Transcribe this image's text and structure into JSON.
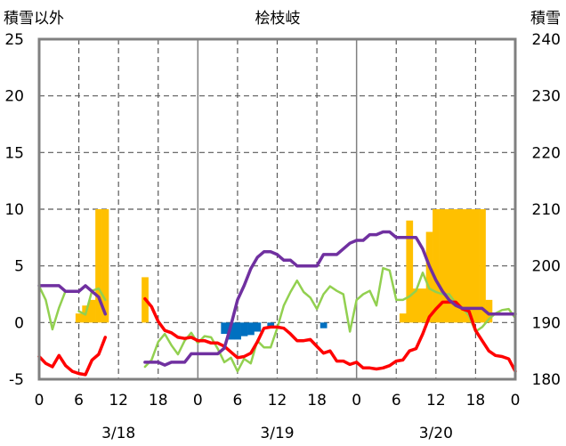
{
  "chart_data": {
    "type": "line",
    "title": "桧枝岐",
    "left_axis_label": "積雪以外",
    "right_axis_label": "積雪",
    "left_ylim": [
      -5,
      25
    ],
    "right_ylim": [
      180,
      240
    ],
    "left_ticks": [
      "25",
      "20",
      "15",
      "10",
      "5",
      "0",
      "-5"
    ],
    "right_ticks": [
      "240",
      "230",
      "220",
      "210",
      "200",
      "190",
      "180"
    ],
    "x_ticks": [
      "0",
      "6",
      "12",
      "18",
      "0",
      "6",
      "12",
      "18",
      "0",
      "6",
      "12",
      "18",
      "0"
    ],
    "x_tick_hours": [
      0,
      6,
      12,
      18,
      24,
      30,
      36,
      42,
      48,
      54,
      60,
      66,
      72
    ],
    "date_labels": [
      {
        "label": "3/18",
        "hour": 12
      },
      {
        "label": "3/19",
        "hour": 36
      },
      {
        "label": "3/20",
        "hour": 60
      }
    ],
    "grid": true,
    "series": [
      {
        "type": "bar",
        "axis": "left",
        "color": "#ffc000",
        "points": [
          [
            6,
            0.8
          ],
          [
            7,
            1.5
          ],
          [
            8,
            2
          ],
          [
            9,
            10
          ],
          [
            10,
            10
          ],
          [
            16,
            4
          ],
          [
            55,
            0.8
          ],
          [
            56,
            9
          ],
          [
            57,
            3
          ],
          [
            58,
            3
          ],
          [
            59,
            8
          ],
          [
            60,
            10
          ],
          [
            61,
            10
          ],
          [
            62,
            10
          ],
          [
            63,
            10
          ],
          [
            64,
            10
          ],
          [
            65,
            10
          ],
          [
            66,
            10
          ],
          [
            67,
            10
          ],
          [
            68,
            2
          ]
        ]
      },
      {
        "type": "bar",
        "axis": "left",
        "color": "#0070c0",
        "points": [
          [
            28,
            -1
          ],
          [
            29,
            -1.5
          ],
          [
            30,
            -1.5
          ],
          [
            31,
            -1.2
          ],
          [
            32,
            -1.1
          ],
          [
            33,
            -0.8
          ],
          [
            35,
            -0.5
          ],
          [
            43,
            -0.5
          ]
        ]
      },
      {
        "type": "line",
        "axis": "left",
        "color": "#92d050",
        "segments": [
          [
            [
              0,
              3.2
            ],
            [
              1,
              2
            ],
            [
              2,
              -0.6
            ],
            [
              3,
              1.3
            ],
            [
              4,
              2.8
            ]
          ],
          [
            [
              6,
              1
            ],
            [
              7,
              0.7
            ],
            [
              8,
              2.8
            ],
            [
              9,
              3
            ],
            [
              10,
              2
            ]
          ],
          [
            [
              16,
              -3.9
            ],
            [
              17,
              -3.3
            ],
            [
              18,
              -1.7
            ],
            [
              19,
              -1
            ],
            [
              20,
              -2
            ],
            [
              21,
              -2.8
            ],
            [
              22,
              -1.6
            ],
            [
              23,
              -0.9
            ],
            [
              24,
              -1.8
            ],
            [
              25,
              -1.2
            ],
            [
              26,
              -1.3
            ],
            [
              27,
              -2.3
            ],
            [
              28,
              -3.5
            ],
            [
              29,
              -3.1
            ],
            [
              30,
              -4.3
            ],
            [
              31,
              -3.2
            ],
            [
              32,
              -3.6
            ],
            [
              33,
              -1.6
            ],
            [
              34,
              -2.2
            ],
            [
              35,
              -2.2
            ],
            [
              36,
              -0.5
            ],
            [
              37,
              1.5
            ],
            [
              38,
              2.7
            ],
            [
              39,
              3.7
            ],
            [
              40,
              2.7
            ],
            [
              41,
              2.2
            ],
            [
              42,
              1.2
            ],
            [
              43,
              2.5
            ],
            [
              44,
              3.2
            ],
            [
              45,
              2.8
            ],
            [
              46,
              2.5
            ],
            [
              47,
              -0.8
            ],
            [
              48,
              2
            ],
            [
              49,
              2.5
            ],
            [
              50,
              2.8
            ],
            [
              51,
              1.5
            ],
            [
              52,
              4.8
            ],
            [
              53,
              4.6
            ],
            [
              54,
              2
            ],
            [
              55,
              2
            ],
            [
              56,
              2.3
            ],
            [
              57,
              2.8
            ],
            [
              58,
              4.4
            ],
            [
              59,
              3
            ],
            [
              60,
              2.7
            ],
            [
              61,
              2.5
            ],
            [
              62,
              2.5
            ],
            [
              63,
              1.7
            ],
            [
              64,
              1.3
            ],
            [
              65,
              0.6
            ],
            [
              66,
              -0.8
            ],
            [
              67,
              -0.4
            ],
            [
              68,
              0.3
            ],
            [
              69,
              0.8
            ],
            [
              70,
              1.1
            ],
            [
              71,
              1.2
            ],
            [
              72,
              0.4
            ]
          ]
        ]
      },
      {
        "type": "line",
        "axis": "left",
        "color": "#ff0000",
        "segments": [
          [
            [
              0,
              -3
            ],
            [
              1,
              -3.6
            ],
            [
              2,
              -3.9
            ],
            [
              3,
              -2.9
            ],
            [
              4,
              -3.8
            ],
            [
              5,
              -4.3
            ],
            [
              6,
              -4.5
            ],
            [
              7,
              -4.6
            ],
            [
              8,
              -3.3
            ],
            [
              9,
              -2.8
            ],
            [
              10,
              -1.3
            ]
          ],
          [
            [
              16,
              2.1
            ],
            [
              17,
              1.4
            ],
            [
              18,
              0.1
            ],
            [
              19,
              -0.7
            ],
            [
              20,
              -0.9
            ],
            [
              21,
              -1.3
            ],
            [
              22,
              -1.4
            ],
            [
              23,
              -1.3
            ],
            [
              24,
              -1.6
            ],
            [
              25,
              -1.6
            ],
            [
              26,
              -1.8
            ],
            [
              27,
              -1.8
            ],
            [
              28,
              -2.1
            ],
            [
              29,
              -2.6
            ],
            [
              30,
              -3.1
            ],
            [
              31,
              -3
            ],
            [
              32,
              -2.7
            ],
            [
              33,
              -1.7
            ],
            [
              34,
              -0.5
            ],
            [
              35,
              -0.4
            ],
            [
              36,
              -0.4
            ],
            [
              37,
              -0.5
            ],
            [
              38,
              -1
            ],
            [
              39,
              -1.6
            ],
            [
              40,
              -1.6
            ],
            [
              41,
              -1.5
            ],
            [
              42,
              -2.1
            ],
            [
              43,
              -2.7
            ],
            [
              44,
              -2.5
            ],
            [
              45,
              -3.4
            ],
            [
              46,
              -3.4
            ],
            [
              47,
              -3.7
            ],
            [
              48,
              -3.5
            ],
            [
              49,
              -4
            ],
            [
              50,
              -4
            ],
            [
              51,
              -4.1
            ],
            [
              52,
              -4
            ],
            [
              53,
              -3.8
            ],
            [
              54,
              -3.4
            ],
            [
              55,
              -3.3
            ],
            [
              56,
              -2.5
            ],
            [
              57,
              -2.3
            ],
            [
              58,
              -1
            ],
            [
              59,
              0.5
            ],
            [
              60,
              1.2
            ],
            [
              61,
              1.8
            ],
            [
              62,
              1.8
            ],
            [
              63,
              1.8
            ],
            [
              64,
              1.2
            ],
            [
              65,
              1
            ],
            [
              66,
              -0.7
            ],
            [
              67,
              -1.6
            ],
            [
              68,
              -2.5
            ],
            [
              69,
              -2.9
            ],
            [
              70,
              -3
            ],
            [
              71,
              -3.2
            ],
            [
              72,
              -4.3
            ]
          ]
        ]
      },
      {
        "type": "line",
        "axis": "right",
        "color": "#7030a0",
        "segments": [
          [
            [
              0,
              196.5
            ],
            [
              1,
              196.5
            ],
            [
              2,
              196.5
            ],
            [
              3,
              196.5
            ],
            [
              4,
              195.5
            ],
            [
              5,
              195.5
            ],
            [
              6,
              195.5
            ],
            [
              7,
              196.5
            ],
            [
              8,
              195.5
            ],
            [
              9,
              194.5
            ],
            [
              10,
              191.5
            ]
          ],
          [
            [
              16,
              183
            ],
            [
              17,
              183
            ],
            [
              18,
              183
            ],
            [
              19,
              182.5
            ],
            [
              20,
              183
            ],
            [
              21,
              183
            ],
            [
              22,
              183
            ],
            [
              23,
              184.5
            ],
            [
              24,
              184.5
            ],
            [
              25,
              184.5
            ],
            [
              26,
              184.5
            ],
            [
              27,
              184.5
            ],
            [
              28,
              185.5
            ],
            [
              29,
              189.5
            ],
            [
              30,
              194
            ],
            [
              31,
              196.5
            ],
            [
              32,
              199.5
            ],
            [
              33,
              201.5
            ],
            [
              34,
              202.5
            ],
            [
              35,
              202.5
            ],
            [
              36,
              202
            ],
            [
              37,
              201
            ],
            [
              38,
              201
            ],
            [
              39,
              200
            ],
            [
              40,
              200
            ],
            [
              41,
              200
            ],
            [
              42,
              200
            ],
            [
              43,
              202
            ],
            [
              44,
              202
            ],
            [
              45,
              202
            ],
            [
              46,
              203
            ],
            [
              47,
              204
            ],
            [
              48,
              204.5
            ],
            [
              49,
              204.5
            ],
            [
              50,
              205.5
            ],
            [
              51,
              205.5
            ],
            [
              52,
              206
            ],
            [
              53,
              206
            ],
            [
              54,
              205
            ],
            [
              55,
              205
            ],
            [
              56,
              205
            ],
            [
              57,
              205
            ],
            [
              58,
              203
            ],
            [
              59,
              200
            ],
            [
              60,
              197.5
            ],
            [
              61,
              195.5
            ],
            [
              62,
              194
            ],
            [
              63,
              193
            ],
            [
              64,
              192.5
            ],
            [
              65,
              192.5
            ],
            [
              66,
              192.5
            ],
            [
              67,
              192.5
            ],
            [
              68,
              191.5
            ],
            [
              69,
              191.5
            ],
            [
              70,
              191.5
            ],
            [
              71,
              191.5
            ],
            [
              72,
              191.5
            ]
          ]
        ]
      }
    ]
  }
}
